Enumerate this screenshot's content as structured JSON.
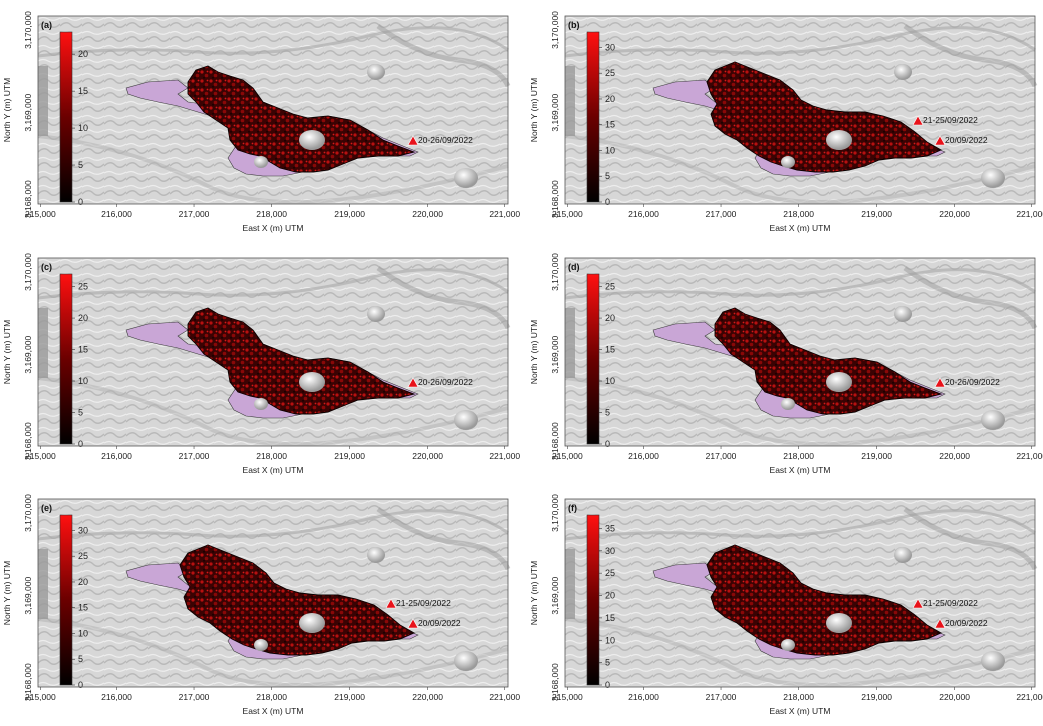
{
  "axes": {
    "xlabel": "East X (m) UTM",
    "ylabel": "North Y (m) UTM",
    "x_ticks": [
      "215,000",
      "216,000",
      "217,000",
      "218,000",
      "219,000",
      "220,000",
      "221,000"
    ],
    "y_ticks": [
      "3,170,000",
      "3,169,000",
      "3,168,000"
    ]
  },
  "colors": {
    "lava_high": "#e0151a",
    "lava_low": "#1a0000",
    "previous_flow": "#c9a6d6",
    "vent": "#e8121a",
    "hillshade": "#cfcfcf"
  },
  "panels": [
    {
      "tag": "(a)",
      "colorbar_max": 20,
      "colorbar_ticks": [
        "0",
        "5",
        "10",
        "15",
        "20"
      ],
      "vents": [
        {
          "label": "20-26/09/2022"
        }
      ]
    },
    {
      "tag": "(b)",
      "colorbar_max": 30,
      "colorbar_ticks": [
        "0",
        "5",
        "10",
        "15",
        "20",
        "25",
        "30"
      ],
      "vents": [
        {
          "label": "21-25/09/2022"
        },
        {
          "label": "20/09/2022"
        }
      ]
    },
    {
      "tag": "(c)",
      "colorbar_max": 25,
      "colorbar_ticks": [
        "0",
        "5",
        "10",
        "15",
        "20",
        "25"
      ],
      "vents": [
        {
          "label": "20-26/09/2022"
        }
      ]
    },
    {
      "tag": "(d)",
      "colorbar_max": 25,
      "colorbar_ticks": [
        "0",
        "5",
        "10",
        "15",
        "20",
        "25"
      ],
      "vents": [
        {
          "label": "20-26/09/2022"
        }
      ]
    },
    {
      "tag": "(e)",
      "colorbar_max": 30,
      "colorbar_ticks": [
        "0",
        "5",
        "10",
        "15",
        "20",
        "25",
        "30"
      ],
      "vents": [
        {
          "label": "21-25/09/2022"
        },
        {
          "label": "20/09/2022"
        }
      ]
    },
    {
      "tag": "(f)",
      "colorbar_max": 35,
      "colorbar_ticks": [
        "0",
        "5",
        "10",
        "15",
        "20",
        "25",
        "30",
        "35"
      ],
      "vents": [
        {
          "label": "21-25/09/2022"
        },
        {
          "label": "20/09/2022"
        }
      ]
    }
  ]
}
